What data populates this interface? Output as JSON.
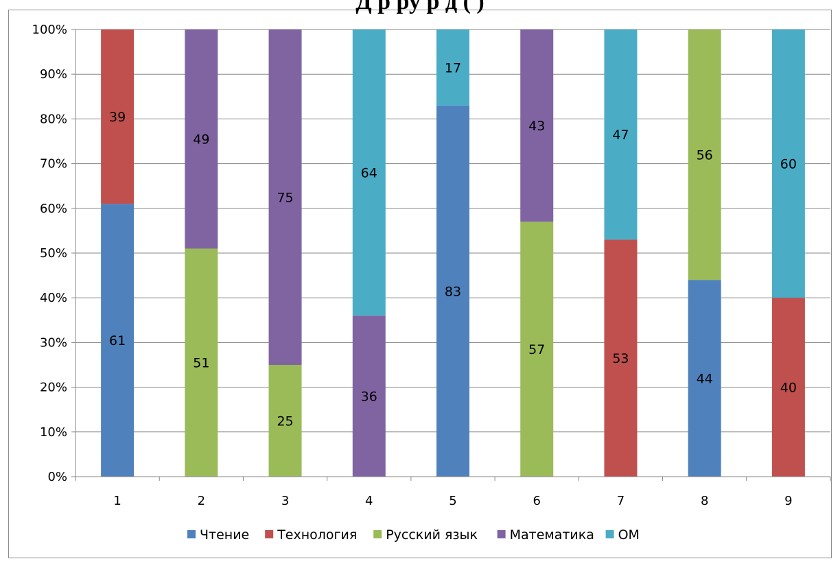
{
  "chart_data": {
    "type": "bar",
    "stacked": "percent",
    "title": "Д                    р                         ру                 р   д          (       )",
    "categories": [
      "1",
      "2",
      "3",
      "4",
      "5",
      "6",
      "7",
      "8",
      "9"
    ],
    "y_tick_labels": [
      "0%",
      "10%",
      "20%",
      "30%",
      "40%",
      "50%",
      "60%",
      "70%",
      "80%",
      "90%",
      "100%"
    ],
    "ylim": [
      0,
      100
    ],
    "grid": true,
    "legend_position": "bottom",
    "series": [
      {
        "name": "Чтение",
        "color": "#4f81bd",
        "values": [
          61,
          0,
          0,
          0,
          83,
          0,
          0,
          44,
          0
        ]
      },
      {
        "name": "Технология",
        "color": "#c0504d",
        "values": [
          39,
          0,
          0,
          0,
          0,
          0,
          53,
          0,
          40
        ]
      },
      {
        "name": "Русский язык",
        "color": "#9bbb59",
        "values": [
          0,
          51,
          25,
          0,
          0,
          57,
          0,
          56,
          0
        ]
      },
      {
        "name": "Математика",
        "color": "#8064a2",
        "values": [
          0,
          49,
          75,
          36,
          0,
          43,
          0,
          0,
          0
        ]
      },
      {
        "name": "ОМ",
        "color": "#4bacc6",
        "values": [
          0,
          0,
          0,
          64,
          17,
          0,
          47,
          0,
          60
        ]
      }
    ]
  }
}
